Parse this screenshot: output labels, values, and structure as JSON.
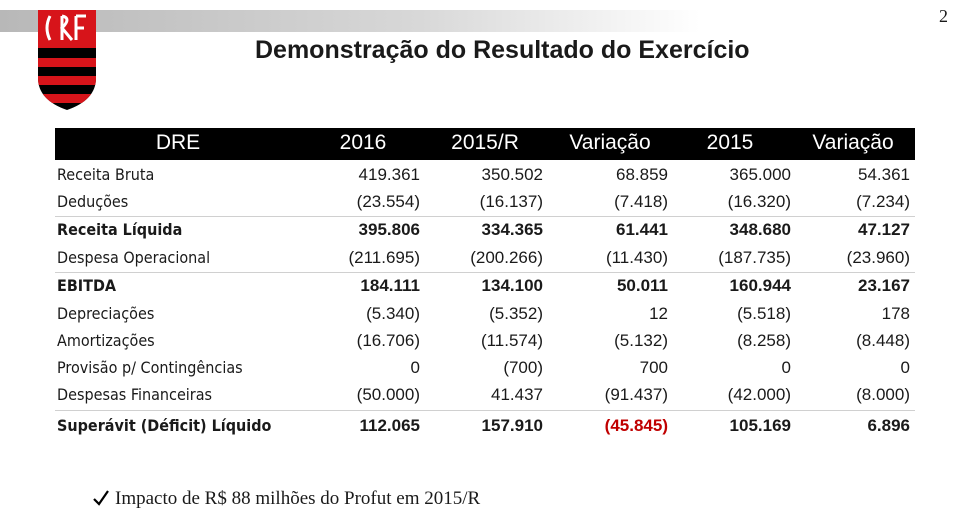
{
  "page_number": "2",
  "title": "Demonstração do Resultado do Exercício",
  "table": {
    "header": [
      "DRE",
      "2016",
      "2015/R",
      "Variação",
      "2015",
      "Variação"
    ],
    "rows": [
      [
        "Receita Bruta",
        "419.361",
        "350.502",
        "68.859",
        "365.000",
        "54.361"
      ],
      [
        "Deduções",
        "(23.554)",
        "(16.137)",
        "(7.418)",
        "(16.320)",
        "(7.234)"
      ],
      [
        "Receita Líquida",
        "395.806",
        "334.365",
        "61.441",
        "348.680",
        "47.127"
      ],
      [
        "Despesa Operacional",
        "(211.695)",
        "(200.266)",
        "(11.430)",
        "(187.735)",
        "(23.960)"
      ],
      [
        "EBITDA",
        "184.111",
        "134.100",
        "50.011",
        "160.944",
        "23.167"
      ],
      [
        "Depreciações",
        "(5.340)",
        "(5.352)",
        "12",
        "(5.518)",
        "178"
      ],
      [
        "Amortizações",
        "(16.706)",
        "(11.574)",
        "(5.132)",
        "(8.258)",
        "(8.448)"
      ],
      [
        "Provisão p/ Contingências",
        "0",
        "(700)",
        "700",
        "0",
        "0"
      ],
      [
        "Despesas Financeiras",
        "(50.000)",
        "41.437",
        "(91.437)",
        "(42.000)",
        "(8.000)"
      ],
      [
        "Superávit (Déficit) Líquido",
        "112.065",
        "157.910",
        "(45.845)",
        "105.169",
        "6.896"
      ]
    ]
  },
  "footnote": "Impacto de R$ 88 milhões do Profut em 2015/R"
}
